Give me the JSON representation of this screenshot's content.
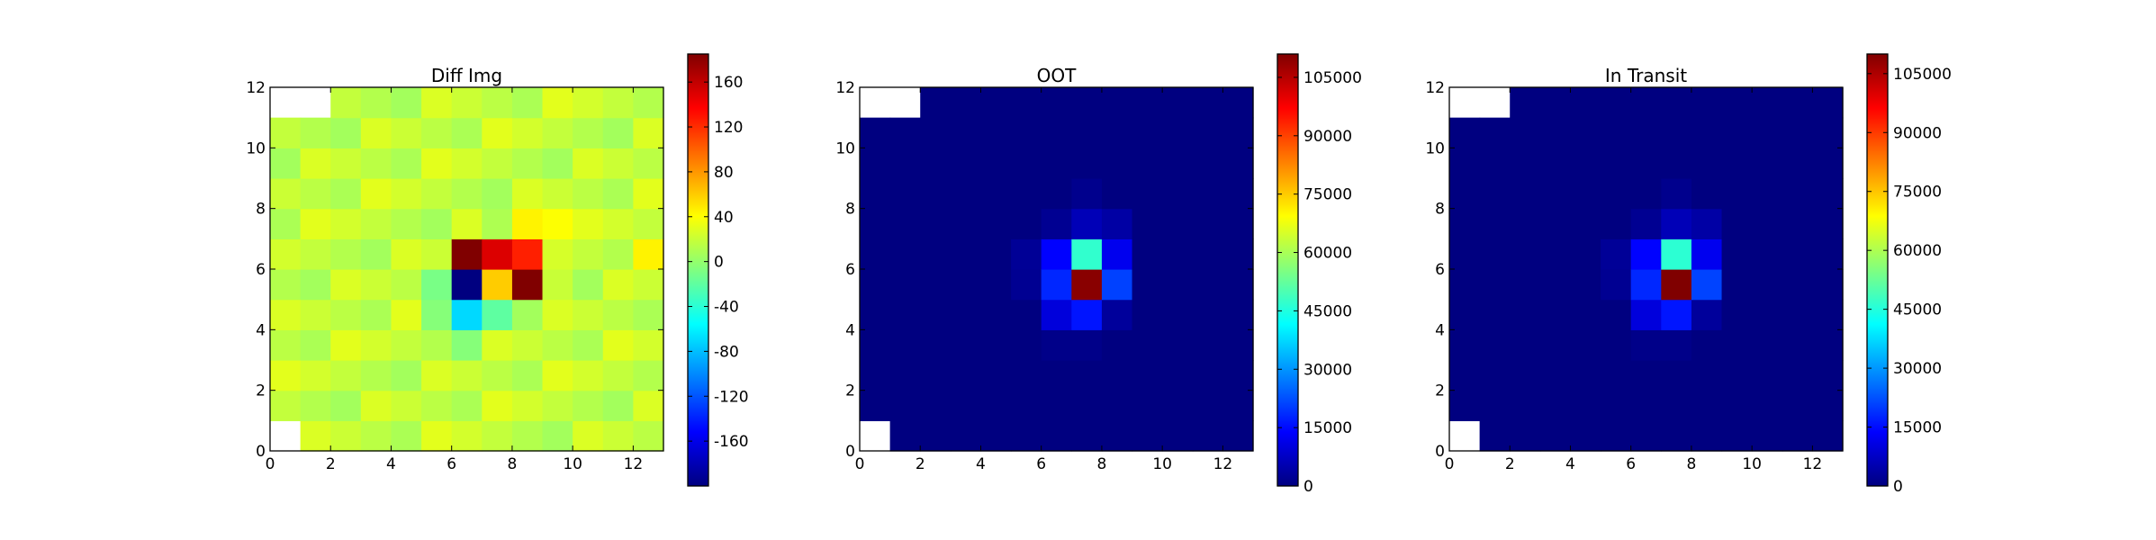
{
  "figure": {
    "background": "#ffffff"
  },
  "chart_data": [
    {
      "type": "heatmap",
      "title": "Diff Img",
      "xlabel": "",
      "ylabel": "",
      "xlim": [
        0,
        13
      ],
      "ylim": [
        0,
        12
      ],
      "xticks": [
        "0",
        "2",
        "4",
        "6",
        "8",
        "10",
        "12"
      ],
      "yticks": [
        "0",
        "2",
        "4",
        "6",
        "8",
        "10",
        "12"
      ],
      "colormap": "jet",
      "vmin": -200,
      "vmax": 185,
      "colorbar_ticks": [
        "-160",
        "-120",
        "-80",
        "-40",
        "0",
        "40",
        "80",
        "120",
        "160"
      ],
      "missing_cells": [
        [
          0,
          11
        ],
        [
          1,
          11
        ],
        [
          0,
          0
        ]
      ],
      "background_value": 18,
      "cells": [
        [
          6,
          6,
          195
        ],
        [
          7,
          6,
          60
        ],
        [
          8,
          6,
          185
        ],
        [
          7,
          5,
          150
        ],
        [
          8,
          5,
          125
        ],
        [
          6,
          4,
          -70
        ],
        [
          7,
          4,
          -20
        ],
        [
          5,
          5,
          -10
        ],
        [
          5,
          4,
          -5
        ],
        [
          6,
          3,
          -5
        ],
        [
          7,
          7,
          10
        ],
        [
          8,
          7,
          45
        ],
        [
          9,
          7,
          40
        ],
        [
          12,
          6,
          45
        ],
        [
          9,
          6,
          25
        ],
        [
          9,
          5,
          20
        ],
        [
          6,
          5,
          -8
        ]
      ],
      "cell_note_override": {
        "6,5": -200,
        "7,5": 60,
        "8,5": 185,
        "7,6": 150,
        "8,6": 125
      }
    },
    {
      "type": "heatmap",
      "title": "OOT",
      "xlabel": "",
      "ylabel": "",
      "xlim": [
        0,
        13
      ],
      "ylim": [
        0,
        12
      ],
      "xticks": [
        "0",
        "2",
        "4",
        "6",
        "8",
        "10",
        "12"
      ],
      "yticks": [
        "0",
        "2",
        "4",
        "6",
        "8",
        "10",
        "12"
      ],
      "colormap": "jet",
      "vmin": 0,
      "vmax": 111000,
      "colorbar_ticks": [
        "0",
        "15000",
        "30000",
        "45000",
        "60000",
        "75000",
        "90000",
        "105000"
      ],
      "missing_cells": [
        [
          0,
          11
        ],
        [
          1,
          11
        ],
        [
          0,
          0
        ]
      ],
      "background_value": 0,
      "cells": [
        [
          7,
          6,
          47000
        ],
        [
          7,
          5,
          110000
        ],
        [
          6,
          6,
          14000
        ],
        [
          8,
          6,
          12000
        ],
        [
          6,
          5,
          18000
        ],
        [
          8,
          5,
          21000
        ],
        [
          6,
          4,
          10000
        ],
        [
          7,
          4,
          16000
        ],
        [
          7,
          7,
          6000
        ],
        [
          8,
          7,
          4000
        ],
        [
          6,
          7,
          2000
        ],
        [
          5,
          6,
          2500
        ],
        [
          5,
          5,
          2000
        ],
        [
          8,
          4,
          3000
        ],
        [
          7,
          8,
          1500
        ],
        [
          6,
          3,
          1000
        ],
        [
          7,
          3,
          1000
        ]
      ]
    },
    {
      "type": "heatmap",
      "title": "In Transit",
      "xlabel": "",
      "ylabel": "",
      "xlim": [
        0,
        13
      ],
      "ylim": [
        0,
        12
      ],
      "xticks": [
        "0",
        "2",
        "4",
        "6",
        "8",
        "10",
        "12"
      ],
      "yticks": [
        "0",
        "2",
        "4",
        "6",
        "8",
        "10",
        "12"
      ],
      "colormap": "jet",
      "vmin": 0,
      "vmax": 110000,
      "colorbar_ticks": [
        "0",
        "15000",
        "30000",
        "45000",
        "60000",
        "75000",
        "90000",
        "105000"
      ],
      "missing_cells": [
        [
          0,
          11
        ],
        [
          1,
          11
        ],
        [
          0,
          0
        ]
      ],
      "background_value": 0,
      "cells": [
        [
          7,
          6,
          46000
        ],
        [
          7,
          5,
          110000
        ],
        [
          6,
          6,
          14000
        ],
        [
          8,
          6,
          12000
        ],
        [
          6,
          5,
          18000
        ],
        [
          8,
          5,
          21000
        ],
        [
          6,
          4,
          10000
        ],
        [
          7,
          4,
          16000
        ],
        [
          7,
          7,
          6000
        ],
        [
          8,
          7,
          4000
        ],
        [
          6,
          7,
          2000
        ],
        [
          5,
          6,
          2500
        ],
        [
          5,
          5,
          2000
        ],
        [
          8,
          4,
          3000
        ],
        [
          7,
          8,
          1500
        ],
        [
          6,
          3,
          1000
        ],
        [
          7,
          3,
          1000
        ]
      ]
    }
  ]
}
